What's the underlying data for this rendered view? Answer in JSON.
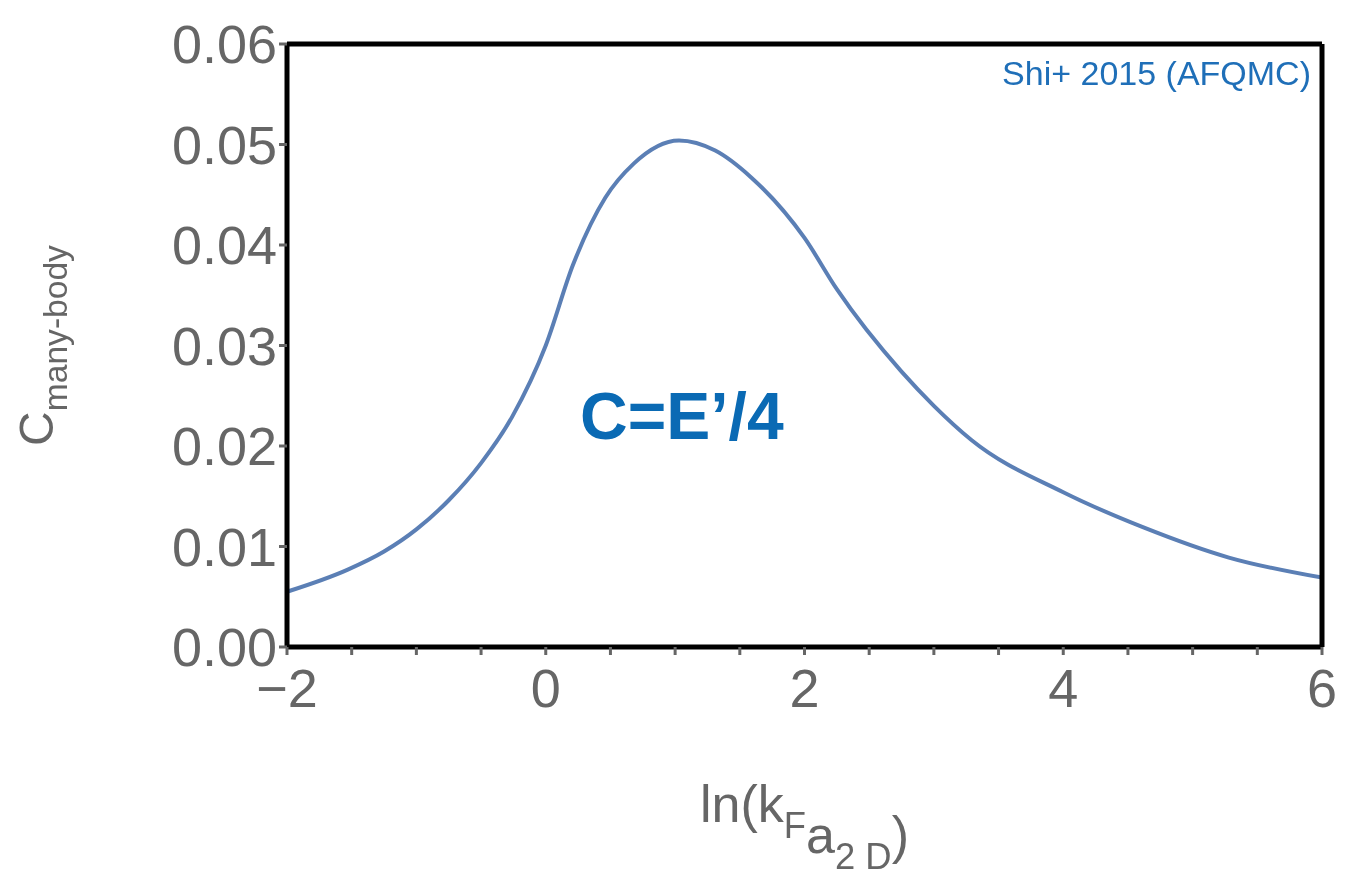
{
  "chart_data": {
    "type": "line",
    "xlabel": "ln(k$_{F}$a$_{2 D}$)",
    "ylabel": "C$_{many-body}$",
    "annotations": [
      "C=E’/4"
    ],
    "xlim": [
      -2,
      6
    ],
    "xticks": [
      {
        "value": -2,
        "label": "−2"
      },
      {
        "value": -1.5,
        "label": null
      },
      {
        "value": -1,
        "label": null
      },
      {
        "value": -0.5,
        "label": null
      },
      0,
      {
        "value": 0.5,
        "label": null
      },
      {
        "value": 1,
        "label": null
      },
      {
        "value": 1.5,
        "label": null
      },
      2,
      {
        "value": 2.5,
        "label": null
      },
      {
        "value": 3,
        "label": null
      },
      {
        "value": 3.5,
        "label": null
      },
      4,
      {
        "value": 4.5,
        "label": null
      },
      {
        "value": 5,
        "label": null
      },
      {
        "value": 5.5,
        "label": null
      },
      6
    ],
    "ylim": [
      0,
      0.06
    ],
    "yticks": [
      {
        "value": 0,
        "label": "0.00"
      },
      {
        "value": 0.01,
        "label": "0.01"
      },
      {
        "value": 0.02,
        "label": "0.02"
      },
      {
        "value": 0.03,
        "label": "0.03"
      },
      {
        "value": 0.04,
        "label": "0.04"
      },
      {
        "value": 0.05,
        "label": "0.05"
      },
      {
        "value": 0.06,
        "label": "0.06"
      }
    ],
    "legend": "top right",
    "marker": "none",
    "x": [
      -2,
      -1.53,
      -1.25,
      -1,
      -0.75,
      -0.5,
      -0.26,
      0,
      0.21,
      0.46,
      0.68,
      1.03,
      1.31,
      1.59,
      2,
      2.25,
      2.75,
      3,
      3.29,
      4,
      4.62,
      5.28,
      6
    ],
    "series": [
      {
        "name": "Shi+ 2015 (AFQMC)",
        "color": "#5b7fb5",
        "values": [
          0.0055,
          0.0077,
          0.0095,
          0.0117,
          0.0146,
          0.0183,
          0.0229,
          0.03,
          0.038,
          0.0447,
          0.0481,
          0.0504,
          0.0494,
          0.0467,
          0.0407,
          0.0356,
          0.0274,
          0.024,
          0.0206,
          0.0154,
          0.0119,
          0.0089,
          0.0069
        ]
      }
    ]
  }
}
